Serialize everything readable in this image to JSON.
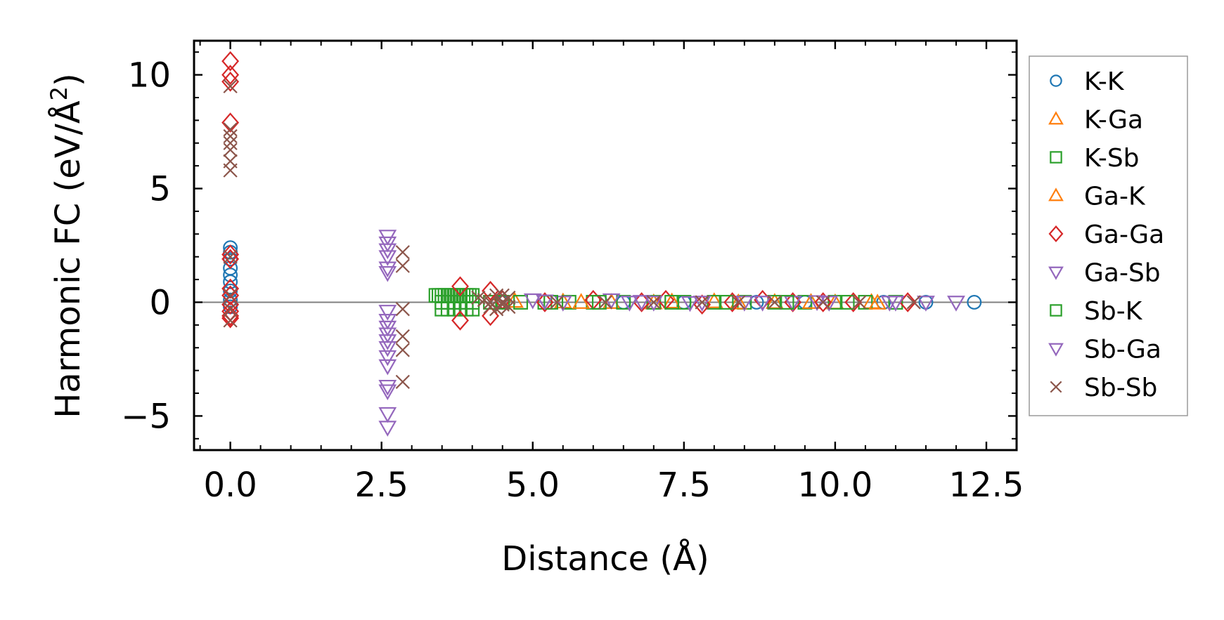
{
  "chart_data": {
    "type": "scatter",
    "title": "",
    "xlabel": "Distance (Å)",
    "ylabel_main": "Harmonic FC (eV/Å",
    "ylabel_sup": "2",
    "ylabel_end": ")",
    "xlim": [
      -0.6,
      13.0
    ],
    "ylim": [
      -6.5,
      11.5
    ],
    "xticks": [
      0.0,
      2.5,
      5.0,
      7.5,
      10.0,
      12.5
    ],
    "xtick_labels": [
      "0.0",
      "2.5",
      "5.0",
      "7.5",
      "10.0",
      "12.5"
    ],
    "yticks": [
      -5,
      0,
      5,
      10
    ],
    "ytick_labels": [
      "−5",
      "0",
      "5",
      "10"
    ],
    "zero_line": 0,
    "legend_position": "right",
    "series": [
      {
        "name": "K-K",
        "marker": "circle",
        "color": "#1f77b4",
        "x": [
          0,
          0,
          0,
          0,
          0,
          0,
          0,
          0,
          0,
          4.5,
          6.5,
          7.5,
          8.7,
          9.5,
          10.8,
          11.5,
          12.3
        ],
        "y": [
          2.4,
          2.2,
          1.9,
          1.5,
          1.2,
          0.9,
          0.5,
          0.1,
          -0.2,
          0.0,
          0.0,
          0.0,
          0.0,
          0.0,
          0.0,
          0.0,
          0.0
        ]
      },
      {
        "name": "K-Ga",
        "marker": "triangle-up",
        "color": "#ff7f0e",
        "x": [
          4.7,
          5.5,
          6.3,
          7.0,
          8.0,
          9.0,
          10.0,
          10.6
        ],
        "y": [
          0.05,
          0.02,
          0.0,
          -0.02,
          0.03,
          0.0,
          -0.02,
          0.0
        ]
      },
      {
        "name": "K-Sb",
        "marker": "square",
        "color": "#2ca02c",
        "x": [
          3.4,
          3.45,
          3.5,
          3.55,
          3.6,
          3.65,
          3.7,
          3.75,
          3.8,
          3.85,
          3.9,
          3.95,
          4.0,
          3.5,
          3.6,
          3.7,
          3.8,
          3.9,
          4.0,
          3.5,
          3.6,
          3.7,
          3.8,
          3.9,
          4.0,
          4.3,
          4.8,
          5.2,
          5.6,
          6.0,
          6.5,
          7.0,
          7.5,
          8.0,
          8.5,
          9.0,
          9.5,
          10.0,
          10.5,
          11.0
        ],
        "y": [
          0.3,
          0.3,
          0.3,
          0.3,
          0.3,
          0.3,
          0.3,
          0.3,
          0.3,
          0.3,
          0.3,
          0.3,
          0.3,
          0.0,
          0.0,
          0.0,
          0.0,
          0.0,
          0.0,
          -0.3,
          -0.3,
          -0.3,
          -0.3,
          -0.3,
          -0.3,
          0.0,
          0.0,
          0.0,
          0.0,
          0.0,
          0.0,
          0.0,
          0.0,
          0.0,
          0.0,
          0.0,
          0.0,
          0.0,
          0.0,
          0.0
        ]
      },
      {
        "name": "Ga-K",
        "marker": "triangle-up",
        "color": "#ff7f0e",
        "x": [
          5.8,
          7.3,
          8.4,
          9.6,
          10.7
        ],
        "y": [
          0.0,
          0.02,
          -0.02,
          0.0,
          -0.03
        ]
      },
      {
        "name": "Ga-Ga",
        "marker": "diamond",
        "color": "#d62728",
        "x": [
          0,
          0,
          0,
          0,
          0,
          0,
          0,
          0,
          0,
          0,
          0,
          0,
          3.8,
          3.8,
          4.3,
          4.3,
          4.5,
          5.2,
          6.0,
          6.8,
          7.2,
          7.8,
          8.3,
          8.8,
          9.3,
          9.8,
          10.3,
          11.2
        ],
        "y": [
          10.6,
          10.0,
          9.7,
          7.9,
          2.1,
          1.9,
          0.6,
          0.3,
          -0.1,
          -0.4,
          -0.6,
          -0.7,
          0.7,
          -0.8,
          0.5,
          -0.6,
          0.1,
          0.0,
          0.1,
          0.0,
          0.1,
          -0.1,
          0.0,
          0.1,
          0.0,
          0.0,
          0.0,
          0.0
        ]
      },
      {
        "name": "Ga-Sb",
        "marker": "triangle-down",
        "color": "#9467bd",
        "x": [
          2.6,
          2.6,
          2.6,
          2.6,
          2.6,
          2.6,
          2.6,
          2.6,
          2.6,
          2.6,
          2.6,
          2.6,
          2.6,
          2.6,
          2.6,
          2.6,
          2.6,
          2.6,
          5.0,
          5.5,
          6.3,
          6.6,
          7.0,
          7.8,
          8.5,
          9.3,
          9.9,
          11.0,
          11.5,
          12.0
        ],
        "y": [
          2.9,
          2.6,
          2.3,
          2.0,
          1.5,
          1.3,
          -0.4,
          -0.8,
          -1.1,
          -1.4,
          -1.7,
          -2.0,
          -2.4,
          -2.8,
          -3.7,
          -3.9,
          -4.9,
          -5.5,
          0.1,
          0.0,
          0.1,
          0.0,
          0.0,
          0.0,
          0.0,
          0.0,
          0.0,
          0.0,
          0.0,
          0.0
        ]
      },
      {
        "name": "Sb-K",
        "marker": "square",
        "color": "#2ca02c",
        "x": [
          4.5,
          5.3,
          6.1,
          7.3,
          8.2,
          9.2,
          10.2
        ],
        "y": [
          0.0,
          0.0,
          0.0,
          0.0,
          0.0,
          0.0,
          0.0
        ]
      },
      {
        "name": "Sb-Ga",
        "marker": "triangle-down",
        "color": "#9467bd",
        "x": [
          5.2,
          6.8,
          7.6,
          8.8,
          9.7,
          10.9
        ],
        "y": [
          0.05,
          0.03,
          -0.02,
          0.0,
          0.02,
          0.0
        ]
      },
      {
        "name": "Sb-Sb",
        "marker": "x",
        "color": "#8c564b",
        "x": [
          0,
          0,
          0,
          0,
          0,
          0,
          0,
          0,
          0,
          0,
          0,
          2.85,
          2.85,
          2.85,
          2.85,
          2.85,
          2.85,
          4.1,
          4.2,
          4.3,
          4.4,
          4.5,
          4.6,
          4.4,
          4.5,
          4.6,
          4.3,
          4.5,
          5.4,
          6.2,
          7.0,
          7.8,
          8.4,
          9.0,
          9.8,
          10.4,
          11.3
        ],
        "y": [
          9.5,
          7.6,
          7.3,
          7.0,
          6.7,
          6.2,
          5.8,
          2.0,
          0.3,
          -0.3,
          -0.8,
          2.2,
          1.6,
          -0.3,
          -1.5,
          -2.1,
          -3.5,
          0.2,
          0.1,
          0.0,
          0.3,
          -0.1,
          0.2,
          -0.3,
          0.0,
          -0.2,
          -0.2,
          0.3,
          0.0,
          0.0,
          0.0,
          0.0,
          0.0,
          0.0,
          0.0,
          0.0,
          0.0
        ]
      }
    ]
  }
}
